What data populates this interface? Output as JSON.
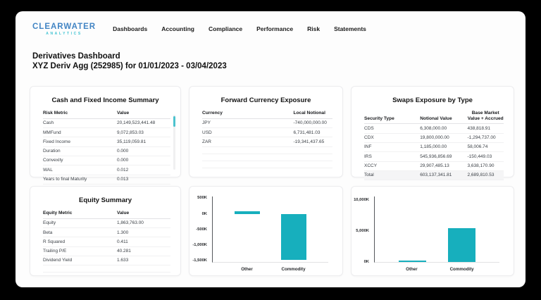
{
  "brand": {
    "name": "CLEARWATER",
    "sub": "ANALYTICS"
  },
  "nav": {
    "items": [
      "Dashboards",
      "Accounting",
      "Compliance",
      "Performance",
      "Risk",
      "Statements"
    ]
  },
  "header": {
    "title": "Derivatives Dashboard",
    "subtitle": "XYZ Deriv Agg (252985) for 01/01/2023 - 03/04/2023"
  },
  "colors": {
    "accent_teal": "#17AFBD",
    "logo_blue": "#4285C4",
    "logo_teal": "#3FC3D2",
    "scrollbar_thumb": "#4CC2CE"
  },
  "cards": {
    "cash_fixed_income": {
      "title": "Cash and Fixed Income Summary",
      "columns": [
        "Risk Metric",
        "Value"
      ],
      "rows": [
        [
          "Cash",
          "20,149,523,441.48"
        ],
        [
          "MMFund",
          "9,072,853.03"
        ],
        [
          "Fixed Income",
          "35,119,059.81"
        ],
        [
          "Duration",
          "0.000"
        ],
        [
          "Convexity",
          "0.000"
        ],
        [
          "WAL",
          "0.012"
        ],
        [
          "Years to final Maturity",
          "0.013"
        ]
      ],
      "empty_rows": 0
    },
    "forward_currency": {
      "title": "Forward Currency Exposure",
      "columns": [
        "Currency",
        "Local Notional"
      ],
      "rows": [
        [
          "JPY",
          "-740,000,000.00"
        ],
        [
          "USD",
          "6,731,481.03"
        ],
        [
          "ZAR",
          "-19,341,437.65"
        ]
      ],
      "empty_rows": 3
    },
    "swaps": {
      "title": "Swaps Exposure by Type",
      "columns": [
        "Security Type",
        "Notional Value",
        "Base Market Value + Accrued"
      ],
      "rows": [
        [
          "CDS",
          "6,308,000.00",
          "438,818.91"
        ],
        [
          "CDX",
          "19,800,000.00",
          "-1,294,737.00"
        ],
        [
          "INF",
          "1,185,000.00",
          "58,006.74"
        ],
        [
          "IRS",
          "545,936,856.69",
          "-150,449.03"
        ],
        [
          "XCCY",
          "29,907,485.13",
          "3,638,170.90"
        ]
      ],
      "total_row": [
        "Total",
        "603,137,341.81",
        "2,689,810.53"
      ],
      "empty_rows": 0
    },
    "equity": {
      "title": "Equity Summary",
      "columns": [
        "Equity Metric",
        "Value"
      ],
      "rows": [
        [
          "Equity",
          "1,863,763.00"
        ],
        [
          "Beta",
          "1.300"
        ],
        [
          "R Squared",
          "0.411"
        ],
        [
          "Trailing P/E",
          "40.281"
        ],
        [
          "Dividend Yield",
          "1.633"
        ]
      ],
      "empty_rows": 1
    }
  },
  "chart_data": [
    {
      "type": "bar",
      "title": "",
      "categories": [
        "Other",
        "Commodity"
      ],
      "values": [
        80,
        -1480
      ],
      "units": "K (thousands)",
      "yticks": [
        500,
        0,
        -500,
        -1000,
        -1500
      ],
      "ytick_labels": [
        "500K",
        "0K",
        "-500K",
        "-1,000K",
        "-1,500K"
      ],
      "ylim": [
        -1545,
        555
      ],
      "bar_color": "#17AFBD",
      "grid": false,
      "legend": false,
      "xlabel": "",
      "ylabel": ""
    },
    {
      "type": "bar",
      "title": "",
      "categories": [
        "Other",
        "Commodity"
      ],
      "values": [
        200,
        5500
      ],
      "units": "K (thousands)",
      "yticks": [
        10000,
        5000,
        0
      ],
      "ytick_labels": [
        "10,000K",
        "5,000K",
        "0K"
      ],
      "ylim": [
        0,
        10600
      ],
      "bar_color": "#17AFBD",
      "grid": false,
      "legend": false,
      "xlabel": "",
      "ylabel": ""
    }
  ]
}
